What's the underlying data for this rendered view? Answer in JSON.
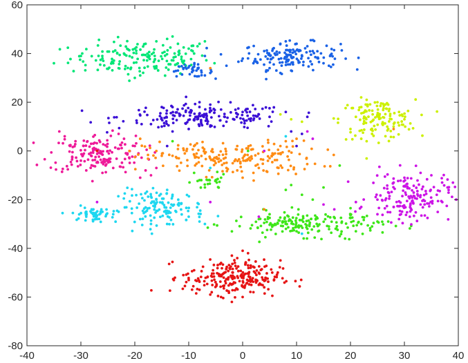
{
  "chart_data": {
    "type": "scatter",
    "title": "",
    "xlabel": "",
    "ylabel": "",
    "xlim": [
      -40,
      40
    ],
    "ylim": [
      -80,
      60
    ],
    "x_ticks": [
      -40,
      -30,
      -20,
      -10,
      0,
      10,
      20,
      30,
      40
    ],
    "y_ticks": [
      -80,
      -60,
      -40,
      -20,
      0,
      20,
      40,
      60
    ],
    "x_tick_labels": [
      "-40",
      "-30",
      "-20",
      "-10",
      "0",
      "10",
      "20",
      "30",
      "40"
    ],
    "y_tick_labels": [
      "-80",
      "-60",
      "-40",
      "-20",
      "0",
      "20",
      "40",
      "60"
    ],
    "grid": false,
    "legend": "none",
    "clusters": [
      {
        "color": "#00e676",
        "cx": -19,
        "cy": 38,
        "sx": 6.5,
        "sy": 3.5,
        "n": 150
      },
      {
        "color": "#1a62e6",
        "cx": 9,
        "cy": 39,
        "sx": 4.5,
        "sy": 2.8,
        "n": 140
      },
      {
        "color": "#1a62e6",
        "cx": -9.5,
        "cy": 33,
        "sx": 2.0,
        "sy": 1.3,
        "n": 35
      },
      {
        "color": "#3b0fd6",
        "cx": -7,
        "cy": 14,
        "sx": 8.0,
        "sy": 2.5,
        "n": 170
      },
      {
        "color": "#ccf000",
        "cx": 25,
        "cy": 13,
        "sx": 3.5,
        "sy": 4.0,
        "n": 120
      },
      {
        "color": "#ee1a99",
        "cx": -27,
        "cy": -1,
        "sx": 4.5,
        "sy": 4.0,
        "n": 150
      },
      {
        "color": "#ff8c14",
        "cx": -2,
        "cy": -3,
        "sx": 8.0,
        "sy": 3.5,
        "n": 180
      },
      {
        "color": "#1ed7f0",
        "cx": -28,
        "cy": -26,
        "sx": 1.8,
        "sy": 1.2,
        "n": 45
      },
      {
        "color": "#1ed7f0",
        "cx": -15,
        "cy": -23,
        "sx": 4.0,
        "sy": 3.5,
        "n": 120
      },
      {
        "color": "#3ee619",
        "cx": 12,
        "cy": -30,
        "sx": 7.0,
        "sy": 2.5,
        "n": 170
      },
      {
        "color": "#3ee619",
        "cx": -6,
        "cy": -13,
        "sx": 1.5,
        "sy": 1.5,
        "n": 20
      },
      {
        "color": "#cc14e6",
        "cx": 31,
        "cy": -19,
        "sx": 3.8,
        "sy": 5.0,
        "n": 150
      },
      {
        "color": "#e61414",
        "cx": -2,
        "cy": -52,
        "sx": 4.5,
        "sy": 3.5,
        "n": 220
      }
    ],
    "points": [
      {
        "x": -35,
        "y": 36,
        "color": "#00e676"
      },
      {
        "x": -30,
        "y": 39,
        "color": "#00e676"
      },
      {
        "x": -26,
        "y": 38,
        "color": "#00e676"
      },
      {
        "x": -24,
        "y": 36,
        "color": "#00e676"
      },
      {
        "x": -22,
        "y": 40,
        "color": "#00e676"
      },
      {
        "x": -20,
        "y": 42,
        "color": "#00e676"
      },
      {
        "x": -18,
        "y": 44,
        "color": "#00e676"
      },
      {
        "x": -16,
        "y": 45,
        "color": "#00e676"
      },
      {
        "x": -14,
        "y": 46,
        "color": "#00e676"
      },
      {
        "x": -13,
        "y": 47,
        "color": "#00e676"
      },
      {
        "x": -12,
        "y": 44,
        "color": "#00e676"
      },
      {
        "x": -10,
        "y": 42,
        "color": "#00e676"
      },
      {
        "x": -8,
        "y": 44,
        "color": "#00e676"
      },
      {
        "x": -7,
        "y": 45,
        "color": "#00e676"
      },
      {
        "x": -19,
        "y": 31,
        "color": "#00e676"
      },
      {
        "x": -20,
        "y": 30,
        "color": "#00e676"
      },
      {
        "x": -23,
        "y": 34,
        "color": "#00e676"
      },
      {
        "x": -16,
        "y": 34,
        "color": "#00e676"
      },
      {
        "x": -11,
        "y": 36,
        "color": "#00e676"
      },
      {
        "x": -9,
        "y": 40,
        "color": "#00e676"
      },
      {
        "x": 1,
        "y": 38,
        "color": "#1a62e6"
      },
      {
        "x": 2,
        "y": 36,
        "color": "#1a62e6"
      },
      {
        "x": 4,
        "y": 41,
        "color": "#1a62e6"
      },
      {
        "x": 7,
        "y": 44,
        "color": "#1a62e6"
      },
      {
        "x": 8,
        "y": 45,
        "color": "#1a62e6"
      },
      {
        "x": 10,
        "y": 44,
        "color": "#1a62e6"
      },
      {
        "x": 12,
        "y": 43,
        "color": "#1a62e6"
      },
      {
        "x": 13,
        "y": 41,
        "color": "#1a62e6"
      },
      {
        "x": 14,
        "y": 38,
        "color": "#1a62e6"
      },
      {
        "x": 9,
        "y": 33,
        "color": "#1a62e6"
      },
      {
        "x": 5,
        "y": 34,
        "color": "#1a62e6"
      },
      {
        "x": 7,
        "y": 32,
        "color": "#1a62e6"
      },
      {
        "x": 16,
        "y": 35,
        "color": "#1a62e6"
      },
      {
        "x": 15,
        "y": 36,
        "color": "#1a62e6"
      },
      {
        "x": -3,
        "y": 35,
        "color": "#1a62e6"
      },
      {
        "x": -11,
        "y": 34,
        "color": "#1a62e6"
      },
      {
        "x": -7,
        "y": 31,
        "color": "#1a62e6"
      },
      {
        "x": -6,
        "y": 32,
        "color": "#1a62e6"
      },
      {
        "x": -7,
        "y": 39,
        "color": "#1a62e6"
      },
      {
        "x": -12,
        "y": 33,
        "color": "#1a62e6"
      },
      {
        "x": -15,
        "y": 18,
        "color": "#3b0fd6"
      },
      {
        "x": -13,
        "y": 18,
        "color": "#3b0fd6"
      },
      {
        "x": -8,
        "y": 20,
        "color": "#3b0fd6"
      },
      {
        "x": -6,
        "y": 19,
        "color": "#3b0fd6"
      },
      {
        "x": -4,
        "y": 17,
        "color": "#3b0fd6"
      },
      {
        "x": 0,
        "y": 16,
        "color": "#3b0fd6"
      },
      {
        "x": 3,
        "y": 15,
        "color": "#3b0fd6"
      },
      {
        "x": 5,
        "y": 14,
        "color": "#3b0fd6"
      },
      {
        "x": -17,
        "y": 11,
        "color": "#3b0fd6"
      },
      {
        "x": -15,
        "y": 10,
        "color": "#3b0fd6"
      },
      {
        "x": -13,
        "y": 8,
        "color": "#3b0fd6"
      },
      {
        "x": -10,
        "y": 9,
        "color": "#3b0fd6"
      },
      {
        "x": -6,
        "y": 10,
        "color": "#3b0fd6"
      },
      {
        "x": -3,
        "y": 12,
        "color": "#3b0fd6"
      },
      {
        "x": 8,
        "y": 16,
        "color": "#3b0fd6"
      },
      {
        "x": 9,
        "y": 8,
        "color": "#3b0fd6"
      },
      {
        "x": 12,
        "y": 14,
        "color": "#3b0fd6"
      },
      {
        "x": 11,
        "y": 7,
        "color": "#3b0fd6"
      },
      {
        "x": 10,
        "y": 2,
        "color": "#3b0fd6"
      },
      {
        "x": -14,
        "y": 2,
        "color": "#3b0fd6"
      },
      {
        "x": 20,
        "y": 9,
        "color": "#ccf000"
      },
      {
        "x": 22,
        "y": 18,
        "color": "#ccf000"
      },
      {
        "x": 23,
        "y": 21,
        "color": "#ccf000"
      },
      {
        "x": 25,
        "y": 20,
        "color": "#ccf000"
      },
      {
        "x": 27,
        "y": 19,
        "color": "#ccf000"
      },
      {
        "x": 29,
        "y": 16,
        "color": "#ccf000"
      },
      {
        "x": 30,
        "y": 13,
        "color": "#ccf000"
      },
      {
        "x": 28,
        "y": 10,
        "color": "#ccf000"
      },
      {
        "x": 22,
        "y": 5,
        "color": "#ccf000"
      },
      {
        "x": 23,
        "y": 4,
        "color": "#ccf000"
      },
      {
        "x": 24,
        "y": 7,
        "color": "#ccf000"
      },
      {
        "x": 21,
        "y": 14,
        "color": "#ccf000"
      },
      {
        "x": 9,
        "y": 13,
        "color": "#ccf000"
      },
      {
        "x": 11,
        "y": 12,
        "color": "#ccf000"
      },
      {
        "x": 7,
        "y": 15,
        "color": "#ccf000"
      },
      {
        "x": 27,
        "y": 9,
        "color": "#ccf000"
      },
      {
        "x": -34,
        "y": 8,
        "color": "#ee1a99"
      },
      {
        "x": -33,
        "y": 6,
        "color": "#ee1a99"
      },
      {
        "x": -31,
        "y": 4,
        "color": "#ee1a99"
      },
      {
        "x": -32,
        "y": 2,
        "color": "#ee1a99"
      },
      {
        "x": -30,
        "y": -4,
        "color": "#ee1a99"
      },
      {
        "x": -29,
        "y": -8,
        "color": "#ee1a99"
      },
      {
        "x": -26,
        "y": -9,
        "color": "#ee1a99"
      },
      {
        "x": -24,
        "y": -7,
        "color": "#ee1a99"
      },
      {
        "x": -22,
        "y": 5,
        "color": "#ee1a99"
      },
      {
        "x": -20,
        "y": 2,
        "color": "#ee1a99"
      },
      {
        "x": -21,
        "y": -3,
        "color": "#ee1a99"
      },
      {
        "x": -18,
        "y": -8,
        "color": "#ee1a99"
      },
      {
        "x": -19,
        "y": -11,
        "color": "#ee1a99"
      },
      {
        "x": -17,
        "y": -10,
        "color": "#ee1a99"
      },
      {
        "x": -16,
        "y": -7,
        "color": "#ee1a99"
      },
      {
        "x": -23,
        "y": 7,
        "color": "#ee1a99"
      },
      {
        "x": -16,
        "y": 0,
        "color": "#ff8c14"
      },
      {
        "x": -15,
        "y": -2,
        "color": "#ff8c14"
      },
      {
        "x": -13,
        "y": -2,
        "color": "#ff8c14"
      },
      {
        "x": -11,
        "y": 1,
        "color": "#ff8c14"
      },
      {
        "x": -9,
        "y": 2,
        "color": "#ff8c14"
      },
      {
        "x": -7,
        "y": -1,
        "color": "#ff8c14"
      },
      {
        "x": -5,
        "y": -5,
        "color": "#ff8c14"
      },
      {
        "x": -3,
        "y": -7,
        "color": "#ff8c14"
      },
      {
        "x": -1,
        "y": -8,
        "color": "#ff8c14"
      },
      {
        "x": 0,
        "y": -11,
        "color": "#ff8c14"
      },
      {
        "x": 2,
        "y": -9,
        "color": "#ff8c14"
      },
      {
        "x": 3,
        "y": -7,
        "color": "#ff8c14"
      },
      {
        "x": 5,
        "y": -3,
        "color": "#ff8c14"
      },
      {
        "x": 6,
        "y": -1,
        "color": "#ff8c14"
      },
      {
        "x": 7,
        "y": 2,
        "color": "#ff8c14"
      },
      {
        "x": 8,
        "y": 4,
        "color": "#ff8c14"
      },
      {
        "x": 1,
        "y": 1,
        "color": "#ff8c14"
      },
      {
        "x": -1,
        "y": 2,
        "color": "#ff8c14"
      },
      {
        "x": 10,
        "y": 5,
        "color": "#ff8c14"
      },
      {
        "x": -19,
        "y": 5,
        "color": "#ff8c14"
      },
      {
        "x": -21,
        "y": 0,
        "color": "#ff8c14"
      },
      {
        "x": 4,
        "y": -24,
        "color": "#ff8c14"
      },
      {
        "x": 28,
        "y": 9,
        "color": "#ff8c14"
      },
      {
        "x": -6,
        "y": 34,
        "color": "#ff8c14"
      },
      {
        "x": -28,
        "y": -24,
        "color": "#1ed7f0"
      },
      {
        "x": -29,
        "y": -27,
        "color": "#1ed7f0"
      },
      {
        "x": -27,
        "y": -28,
        "color": "#1ed7f0"
      },
      {
        "x": -26,
        "y": -25,
        "color": "#1ed7f0"
      },
      {
        "x": -24,
        "y": -26,
        "color": "#1ed7f0"
      },
      {
        "x": -23,
        "y": -25,
        "color": "#1ed7f0"
      },
      {
        "x": -19,
        "y": -28,
        "color": "#1ed7f0"
      },
      {
        "x": -18,
        "y": -25,
        "color": "#1ed7f0"
      },
      {
        "x": -16,
        "y": -20,
        "color": "#1ed7f0"
      },
      {
        "x": -14,
        "y": -16,
        "color": "#1ed7f0"
      },
      {
        "x": -13,
        "y": -18,
        "color": "#1ed7f0"
      },
      {
        "x": -12,
        "y": -22,
        "color": "#1ed7f0"
      },
      {
        "x": -10,
        "y": -27,
        "color": "#1ed7f0"
      },
      {
        "x": -8,
        "y": -29,
        "color": "#1ed7f0"
      },
      {
        "x": -7,
        "y": -30,
        "color": "#1ed7f0"
      },
      {
        "x": -17,
        "y": -30,
        "color": "#1ed7f0"
      },
      {
        "x": -14,
        "y": -30,
        "color": "#1ed7f0"
      },
      {
        "x": -6,
        "y": -7,
        "color": "#1ed7f0"
      },
      {
        "x": 8,
        "y": 6,
        "color": "#1ed7f0"
      },
      {
        "x": 11,
        "y": -34,
        "color": "#1ed7f0"
      },
      {
        "x": 3,
        "y": -28,
        "color": "#3ee619"
      },
      {
        "x": 5,
        "y": -26,
        "color": "#3ee619"
      },
      {
        "x": 6,
        "y": -30,
        "color": "#3ee619"
      },
      {
        "x": 8,
        "y": -29,
        "color": "#3ee619"
      },
      {
        "x": 10,
        "y": -33,
        "color": "#3ee619"
      },
      {
        "x": 12,
        "y": -32,
        "color": "#3ee619"
      },
      {
        "x": 14,
        "y": -33,
        "color": "#3ee619"
      },
      {
        "x": 16,
        "y": -31,
        "color": "#3ee619"
      },
      {
        "x": 18,
        "y": -35,
        "color": "#3ee619"
      },
      {
        "x": 19,
        "y": -36,
        "color": "#3ee619"
      },
      {
        "x": 21,
        "y": -33,
        "color": "#3ee619"
      },
      {
        "x": 22,
        "y": -30,
        "color": "#3ee619"
      },
      {
        "x": 24,
        "y": -31,
        "color": "#3ee619"
      },
      {
        "x": 25,
        "y": -29,
        "color": "#3ee619"
      },
      {
        "x": 8,
        "y": -16,
        "color": "#3ee619"
      },
      {
        "x": 9,
        "y": -14,
        "color": "#3ee619"
      },
      {
        "x": 11,
        "y": -18,
        "color": "#3ee619"
      },
      {
        "x": 13,
        "y": -20,
        "color": "#3ee619"
      },
      {
        "x": 15,
        "y": -15,
        "color": "#3ee619"
      },
      {
        "x": 18,
        "y": -6,
        "color": "#3ee619"
      },
      {
        "x": -8,
        "y": -12,
        "color": "#3ee619"
      },
      {
        "x": -7,
        "y": -15,
        "color": "#3ee619"
      },
      {
        "x": -5,
        "y": -12,
        "color": "#3ee619"
      },
      {
        "x": -9,
        "y": -9,
        "color": "#3ee619"
      },
      {
        "x": -4,
        "y": -11,
        "color": "#3ee619"
      },
      {
        "x": 27,
        "y": -29,
        "color": "#3ee619"
      },
      {
        "x": -13,
        "y": 4,
        "color": "#3ee619"
      },
      {
        "x": 1,
        "y": 0,
        "color": "#3ee619"
      },
      {
        "x": 25,
        "y": -20,
        "color": "#cc14e6"
      },
      {
        "x": 27,
        "y": -17,
        "color": "#cc14e6"
      },
      {
        "x": 28,
        "y": -13,
        "color": "#cc14e6"
      },
      {
        "x": 30,
        "y": -11,
        "color": "#cc14e6"
      },
      {
        "x": 33,
        "y": -9,
        "color": "#cc14e6"
      },
      {
        "x": 35,
        "y": -10,
        "color": "#cc14e6"
      },
      {
        "x": 37,
        "y": -13,
        "color": "#cc14e6"
      },
      {
        "x": 38,
        "y": -15,
        "color": "#cc14e6"
      },
      {
        "x": 36,
        "y": -18,
        "color": "#cc14e6"
      },
      {
        "x": 33,
        "y": -22,
        "color": "#cc14e6"
      },
      {
        "x": 31,
        "y": -27,
        "color": "#cc14e6"
      },
      {
        "x": 29,
        "y": -28,
        "color": "#cc14e6"
      },
      {
        "x": 28,
        "y": -23,
        "color": "#cc14e6"
      },
      {
        "x": 25,
        "y": -26,
        "color": "#cc14e6"
      },
      {
        "x": 22,
        "y": -23,
        "color": "#cc14e6"
      },
      {
        "x": 21,
        "y": -21,
        "color": "#cc14e6"
      },
      {
        "x": 17,
        "y": -24,
        "color": "#cc14e6"
      },
      {
        "x": 15,
        "y": -22,
        "color": "#cc14e6"
      },
      {
        "x": 12,
        "y": 8,
        "color": "#cc14e6"
      },
      {
        "x": 13,
        "y": 5,
        "color": "#cc14e6"
      },
      {
        "x": 4,
        "y": 0,
        "color": "#cc14e6"
      },
      {
        "x": -6,
        "y": -21,
        "color": "#cc14e6"
      },
      {
        "x": -27,
        "y": -21,
        "color": "#cc14e6"
      },
      {
        "x": 3,
        "y": -27,
        "color": "#cc14e6"
      },
      {
        "x": -9,
        "y": -49,
        "color": "#e61414"
      },
      {
        "x": -10,
        "y": -53,
        "color": "#e61414"
      },
      {
        "x": -8,
        "y": -57,
        "color": "#e61414"
      },
      {
        "x": -6,
        "y": -59,
        "color": "#e61414"
      },
      {
        "x": -4,
        "y": -60,
        "color": "#e61414"
      },
      {
        "x": -2,
        "y": -62,
        "color": "#e61414"
      },
      {
        "x": 0,
        "y": -60,
        "color": "#e61414"
      },
      {
        "x": 2,
        "y": -58,
        "color": "#e61414"
      },
      {
        "x": 3,
        "y": -55,
        "color": "#e61414"
      },
      {
        "x": 4,
        "y": -53,
        "color": "#e61414"
      },
      {
        "x": 3,
        "y": -50,
        "color": "#e61414"
      },
      {
        "x": 1,
        "y": -47,
        "color": "#e61414"
      },
      {
        "x": -1,
        "y": -44,
        "color": "#e61414"
      },
      {
        "x": -2,
        "y": -43,
        "color": "#e61414"
      },
      {
        "x": -4,
        "y": -46,
        "color": "#e61414"
      },
      {
        "x": 1,
        "y": -42,
        "color": "#e61414"
      },
      {
        "x": 0,
        "y": -41,
        "color": "#e61414"
      },
      {
        "x": -11,
        "y": -51,
        "color": "#e61414"
      },
      {
        "x": 4,
        "y": -56,
        "color": "#e61414"
      },
      {
        "x": -27,
        "y": 0,
        "color": "#e61414"
      }
    ]
  }
}
